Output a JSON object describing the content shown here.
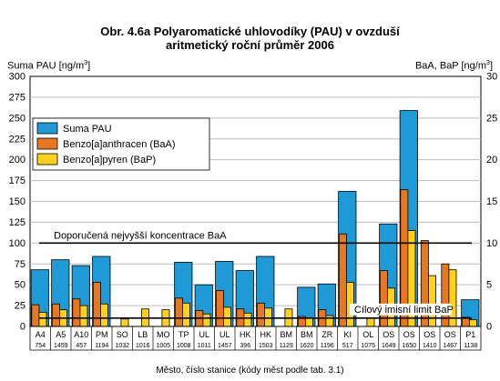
{
  "chart_data": {
    "type": "bar",
    "title_line1": "Obr. 4.6a  Polyaromatické uhlovodíky (PAU) v ovzduší",
    "title_line2": "aritmetický roční průměr 2006",
    "ylabel_left": "Suma PAU [ng/m",
    "ylabel_right": "BaA, BaP [ng/m",
    "ylabel_unit_sup": "3",
    "ylabel_unit_close": "]",
    "xlabel": "Město, číslo stanice (kódy měst podle tab. 3.1)",
    "ylim_left": [
      0,
      300
    ],
    "ylim_right": [
      0,
      30
    ],
    "yticks_left": [
      "0",
      "25",
      "50",
      "75",
      "100",
      "125",
      "150",
      "175",
      "200",
      "225",
      "250",
      "275",
      "300"
    ],
    "yticks_right": [
      "0",
      "5",
      "10",
      "15",
      "20",
      "25",
      "30"
    ],
    "categories": [
      {
        "city": "A4",
        "station": "754"
      },
      {
        "city": "A5",
        "station": "1459"
      },
      {
        "city": "A10",
        "station": "457"
      },
      {
        "city": "PM",
        "station": "1194"
      },
      {
        "city": "SO",
        "station": "1032"
      },
      {
        "city": "LB",
        "station": "1016"
      },
      {
        "city": "MO",
        "station": "1005"
      },
      {
        "city": "TP",
        "station": "1008"
      },
      {
        "city": "UL",
        "station": "1011"
      },
      {
        "city": "UL",
        "station": "1457"
      },
      {
        "city": "HK",
        "station": "396"
      },
      {
        "city": "HK",
        "station": "1503"
      },
      {
        "city": "BM",
        "station": "1129"
      },
      {
        "city": "BM",
        "station": "1620"
      },
      {
        "city": "ZR",
        "station": "1196"
      },
      {
        "city": "KI",
        "station": "517"
      },
      {
        "city": "OL",
        "station": "1075"
      },
      {
        "city": "OS",
        "station": "1649"
      },
      {
        "city": "OS",
        "station": "1650"
      },
      {
        "city": "OS",
        "station": "1410"
      },
      {
        "city": "OS",
        "station": "1467"
      },
      {
        "city": "P1",
        "station": "1138"
      }
    ],
    "series": [
      {
        "name": "Suma PAU",
        "axis": "left",
        "color": "#1e9ad6",
        "values": [
          68,
          80,
          73,
          84,
          null,
          null,
          null,
          77,
          50,
          78,
          67,
          84,
          null,
          47,
          51,
          162,
          null,
          123,
          259,
          null,
          null,
          32
        ]
      },
      {
        "name": "Benzo[a]anthracen (BaA)",
        "axis": "right",
        "color": "#e8781f",
        "values": [
          2.6,
          2.7,
          3.3,
          5.3,
          null,
          null,
          null,
          3.4,
          1.9,
          4.3,
          2.1,
          2.8,
          null,
          1.2,
          2.0,
          11.1,
          null,
          6.7,
          16.4,
          10.3,
          7.5,
          1.1
        ]
      },
      {
        "name": "Benzo[a]pyren (BaP)",
        "axis": "right",
        "color": "#ffd11a",
        "values": [
          1.7,
          2.0,
          2.5,
          2.7,
          0.9,
          2.1,
          2.0,
          2.8,
          1.5,
          2.3,
          1.6,
          2.2,
          2.1,
          1.0,
          1.3,
          5.3,
          1.0,
          4.6,
          11.5,
          6.1,
          6.8,
          0.8
        ]
      }
    ],
    "reference_lines": [
      {
        "label": "Doporučená nejvyšší koncentrace BaA",
        "value": 10,
        "axis": "right",
        "color": "#000000",
        "label_pos": "above-left"
      },
      {
        "label": "Cílový imisní limit BaP",
        "value": 1,
        "axis": "right",
        "color": "#000000",
        "label_pos": "above-right"
      }
    ],
    "legend_position": "upper-left",
    "grid": "horizontal"
  }
}
